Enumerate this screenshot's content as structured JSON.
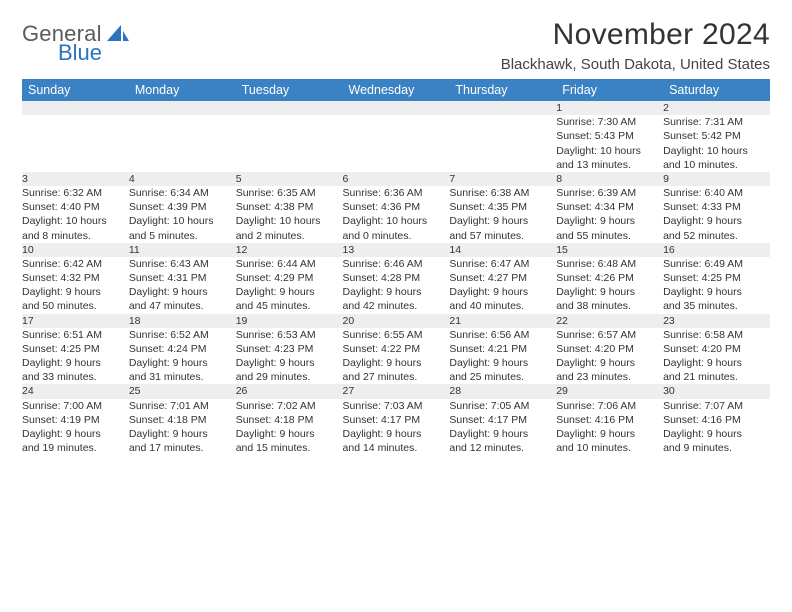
{
  "brand": {
    "line1": "General",
    "line2": "Blue",
    "shape_color": "#2b72c2"
  },
  "title": "November 2024",
  "location": "Blackhawk, South Dakota, United States",
  "colors": {
    "header_bg": "#3a82c4",
    "header_text": "#ffffff",
    "daynum_bg": "#eeeeee",
    "border_top": "#2f6aa8",
    "text": "#333333"
  },
  "weekdays": [
    "Sunday",
    "Monday",
    "Tuesday",
    "Wednesday",
    "Thursday",
    "Friday",
    "Saturday"
  ],
  "weeks": [
    {
      "nums": [
        "",
        "",
        "",
        "",
        "",
        "1",
        "2"
      ],
      "cells": [
        null,
        null,
        null,
        null,
        null,
        {
          "sunrise": "Sunrise: 7:30 AM",
          "sunset": "Sunset: 5:43 PM",
          "day1": "Daylight: 10 hours",
          "day2": "and 13 minutes."
        },
        {
          "sunrise": "Sunrise: 7:31 AM",
          "sunset": "Sunset: 5:42 PM",
          "day1": "Daylight: 10 hours",
          "day2": "and 10 minutes."
        }
      ]
    },
    {
      "nums": [
        "3",
        "4",
        "5",
        "6",
        "7",
        "8",
        "9"
      ],
      "cells": [
        {
          "sunrise": "Sunrise: 6:32 AM",
          "sunset": "Sunset: 4:40 PM",
          "day1": "Daylight: 10 hours",
          "day2": "and 8 minutes."
        },
        {
          "sunrise": "Sunrise: 6:34 AM",
          "sunset": "Sunset: 4:39 PM",
          "day1": "Daylight: 10 hours",
          "day2": "and 5 minutes."
        },
        {
          "sunrise": "Sunrise: 6:35 AM",
          "sunset": "Sunset: 4:38 PM",
          "day1": "Daylight: 10 hours",
          "day2": "and 2 minutes."
        },
        {
          "sunrise": "Sunrise: 6:36 AM",
          "sunset": "Sunset: 4:36 PM",
          "day1": "Daylight: 10 hours",
          "day2": "and 0 minutes."
        },
        {
          "sunrise": "Sunrise: 6:38 AM",
          "sunset": "Sunset: 4:35 PM",
          "day1": "Daylight: 9 hours",
          "day2": "and 57 minutes."
        },
        {
          "sunrise": "Sunrise: 6:39 AM",
          "sunset": "Sunset: 4:34 PM",
          "day1": "Daylight: 9 hours",
          "day2": "and 55 minutes."
        },
        {
          "sunrise": "Sunrise: 6:40 AM",
          "sunset": "Sunset: 4:33 PM",
          "day1": "Daylight: 9 hours",
          "day2": "and 52 minutes."
        }
      ]
    },
    {
      "nums": [
        "10",
        "11",
        "12",
        "13",
        "14",
        "15",
        "16"
      ],
      "cells": [
        {
          "sunrise": "Sunrise: 6:42 AM",
          "sunset": "Sunset: 4:32 PM",
          "day1": "Daylight: 9 hours",
          "day2": "and 50 minutes."
        },
        {
          "sunrise": "Sunrise: 6:43 AM",
          "sunset": "Sunset: 4:31 PM",
          "day1": "Daylight: 9 hours",
          "day2": "and 47 minutes."
        },
        {
          "sunrise": "Sunrise: 6:44 AM",
          "sunset": "Sunset: 4:29 PM",
          "day1": "Daylight: 9 hours",
          "day2": "and 45 minutes."
        },
        {
          "sunrise": "Sunrise: 6:46 AM",
          "sunset": "Sunset: 4:28 PM",
          "day1": "Daylight: 9 hours",
          "day2": "and 42 minutes."
        },
        {
          "sunrise": "Sunrise: 6:47 AM",
          "sunset": "Sunset: 4:27 PM",
          "day1": "Daylight: 9 hours",
          "day2": "and 40 minutes."
        },
        {
          "sunrise": "Sunrise: 6:48 AM",
          "sunset": "Sunset: 4:26 PM",
          "day1": "Daylight: 9 hours",
          "day2": "and 38 minutes."
        },
        {
          "sunrise": "Sunrise: 6:49 AM",
          "sunset": "Sunset: 4:25 PM",
          "day1": "Daylight: 9 hours",
          "day2": "and 35 minutes."
        }
      ]
    },
    {
      "nums": [
        "17",
        "18",
        "19",
        "20",
        "21",
        "22",
        "23"
      ],
      "cells": [
        {
          "sunrise": "Sunrise: 6:51 AM",
          "sunset": "Sunset: 4:25 PM",
          "day1": "Daylight: 9 hours",
          "day2": "and 33 minutes."
        },
        {
          "sunrise": "Sunrise: 6:52 AM",
          "sunset": "Sunset: 4:24 PM",
          "day1": "Daylight: 9 hours",
          "day2": "and 31 minutes."
        },
        {
          "sunrise": "Sunrise: 6:53 AM",
          "sunset": "Sunset: 4:23 PM",
          "day1": "Daylight: 9 hours",
          "day2": "and 29 minutes."
        },
        {
          "sunrise": "Sunrise: 6:55 AM",
          "sunset": "Sunset: 4:22 PM",
          "day1": "Daylight: 9 hours",
          "day2": "and 27 minutes."
        },
        {
          "sunrise": "Sunrise: 6:56 AM",
          "sunset": "Sunset: 4:21 PM",
          "day1": "Daylight: 9 hours",
          "day2": "and 25 minutes."
        },
        {
          "sunrise": "Sunrise: 6:57 AM",
          "sunset": "Sunset: 4:20 PM",
          "day1": "Daylight: 9 hours",
          "day2": "and 23 minutes."
        },
        {
          "sunrise": "Sunrise: 6:58 AM",
          "sunset": "Sunset: 4:20 PM",
          "day1": "Daylight: 9 hours",
          "day2": "and 21 minutes."
        }
      ]
    },
    {
      "nums": [
        "24",
        "25",
        "26",
        "27",
        "28",
        "29",
        "30"
      ],
      "cells": [
        {
          "sunrise": "Sunrise: 7:00 AM",
          "sunset": "Sunset: 4:19 PM",
          "day1": "Daylight: 9 hours",
          "day2": "and 19 minutes."
        },
        {
          "sunrise": "Sunrise: 7:01 AM",
          "sunset": "Sunset: 4:18 PM",
          "day1": "Daylight: 9 hours",
          "day2": "and 17 minutes."
        },
        {
          "sunrise": "Sunrise: 7:02 AM",
          "sunset": "Sunset: 4:18 PM",
          "day1": "Daylight: 9 hours",
          "day2": "and 15 minutes."
        },
        {
          "sunrise": "Sunrise: 7:03 AM",
          "sunset": "Sunset: 4:17 PM",
          "day1": "Daylight: 9 hours",
          "day2": "and 14 minutes."
        },
        {
          "sunrise": "Sunrise: 7:05 AM",
          "sunset": "Sunset: 4:17 PM",
          "day1": "Daylight: 9 hours",
          "day2": "and 12 minutes."
        },
        {
          "sunrise": "Sunrise: 7:06 AM",
          "sunset": "Sunset: 4:16 PM",
          "day1": "Daylight: 9 hours",
          "day2": "and 10 minutes."
        },
        {
          "sunrise": "Sunrise: 7:07 AM",
          "sunset": "Sunset: 4:16 PM",
          "day1": "Daylight: 9 hours",
          "day2": "and 9 minutes."
        }
      ]
    }
  ]
}
